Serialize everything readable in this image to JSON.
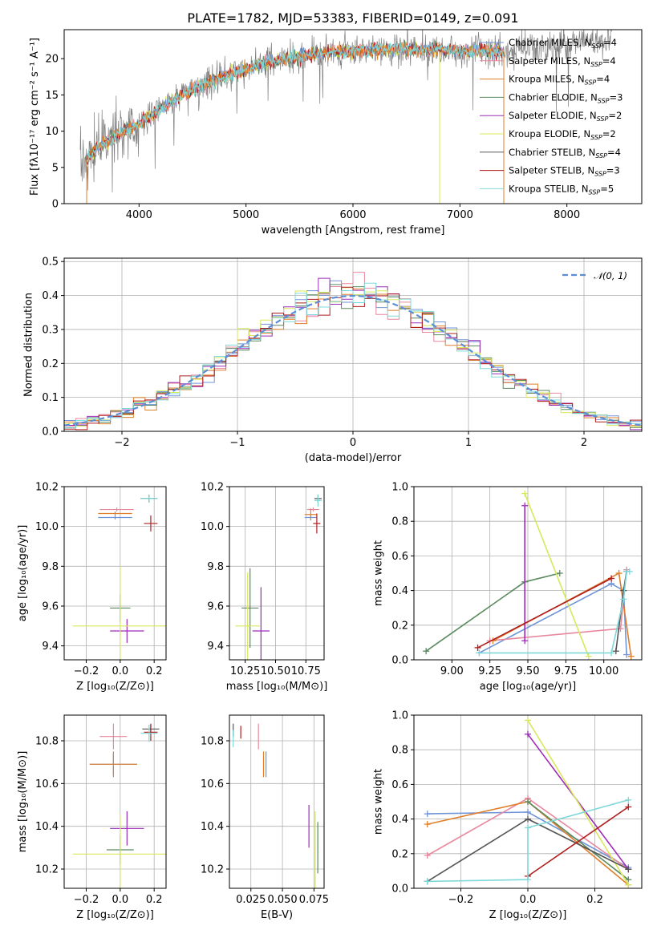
{
  "colors": {
    "chabrier_miles": "#6f94d8",
    "salpeter_miles": "#e8889e",
    "kroupa_miles": "#e07f2a",
    "chabrier_elodie": "#5a8a5e",
    "salpeter_elodie": "#9d2bb8",
    "kroupa_elodie": "#d8e85a",
    "chabrier_stelib": "#555555",
    "salpeter_stelib": "#b01e1e",
    "kroupa_stelib": "#7fd8d8",
    "grid": "#b0b0b0",
    "axes": "#000000",
    "normal": "#5b8ed6"
  },
  "chart_data": [
    {
      "id": "spectrum",
      "type": "line",
      "title": "PLATE=1782, MJD=53383, FIBERID=0149, z=0.091",
      "xlabel": "wavelength [Angstrom, rest frame]",
      "ylabel": "Flux [fλ10⁻¹⁷ erg cm⁻² s⁻¹ A⁻¹]",
      "xlim": [
        3300,
        8700
      ],
      "ylim": [
        0,
        24
      ],
      "xticks": [
        "4000",
        "5000",
        "6000",
        "7000",
        "8000"
      ],
      "xtick_values": [
        4000,
        5000,
        6000,
        7000,
        8000
      ],
      "yticks": [
        "0",
        "5",
        "10",
        "15",
        "20"
      ],
      "ytick_values": [
        0,
        5,
        10,
        15,
        20
      ],
      "grid": false,
      "legend_position": "top-right",
      "legend": [
        {
          "label": "Chabrier MILES, N",
          "sub": "SSP",
          "post": "=4",
          "color_key": "chabrier_miles"
        },
        {
          "label": "Salpeter MILES, N",
          "sub": "SSP",
          "post": "=4",
          "color_key": "salpeter_miles"
        },
        {
          "label": "Kroupa MILES, N",
          "sub": "SSP",
          "post": "=4",
          "color_key": "kroupa_miles"
        },
        {
          "label": "Chabrier ELODIE, N",
          "sub": "SSP",
          "post": "=3",
          "color_key": "chabrier_elodie"
        },
        {
          "label": "Salpeter ELODIE, N",
          "sub": "SSP",
          "post": "=2",
          "color_key": "salpeter_elodie"
        },
        {
          "label": "Kroupa ELODIE, N",
          "sub": "SSP",
          "post": "=2",
          "color_key": "kroupa_elodie"
        },
        {
          "label": "Chabrier STELIB, N",
          "sub": "SSP",
          "post": "=4",
          "color_key": "chabrier_stelib"
        },
        {
          "label": "Salpeter STELIB, N",
          "sub": "SSP",
          "post": "=3",
          "color_key": "salpeter_stelib"
        },
        {
          "label": "Kroupa STELIB, N",
          "sub": "SSP",
          "post": "=5",
          "color_key": "kroupa_stelib"
        }
      ],
      "continuum": {
        "x": [
          3450,
          3600,
          3800,
          4000,
          4200,
          4400,
          4600,
          4800,
          5000,
          5200,
          5400,
          5600,
          5800,
          6000,
          6200,
          6400,
          6600,
          6800,
          7000,
          7200,
          7400,
          7600,
          7800,
          8000,
          8200,
          8400
        ],
        "y": [
          5,
          7.5,
          9.5,
          11,
          13,
          15,
          16.5,
          17.5,
          18.5,
          19.5,
          20,
          20.5,
          21,
          21,
          21.2,
          21.3,
          21.2,
          21.3,
          21.1,
          21,
          21,
          21.5,
          21.5,
          22,
          22.5,
          22.8
        ]
      }
    },
    {
      "id": "residuals",
      "type": "histogram",
      "xlabel": "(data-model)/error",
      "ylabel": "Normed distribution",
      "xlim": [
        -2.5,
        2.5
      ],
      "ylim": [
        0,
        0.51
      ],
      "xticks": [
        "−2",
        "−1",
        "0",
        "1",
        "2"
      ],
      "xtick_values": [
        -2,
        -1,
        0,
        1,
        2
      ],
      "yticks": [
        "0.0",
        "0.1",
        "0.2",
        "0.3",
        "0.4",
        "0.5"
      ],
      "ytick_values": [
        0,
        0.1,
        0.2,
        0.3,
        0.4,
        0.5
      ],
      "grid": true,
      "legend_position": "top-right",
      "legend": [
        {
          "label": "𝒩(0, 1)",
          "color_key": "normal"
        }
      ],
      "bin_width": 0.1
    },
    {
      "id": "age_vs_z",
      "type": "errorbar",
      "xlabel": "Z [log₁₀(Z/Z⊙)]",
      "ylabel": "age  [log₁₀(age/yr)]",
      "xlim": [
        -0.33,
        0.27
      ],
      "ylim": [
        9.33,
        10.2
      ],
      "xticks": [
        "−0.2",
        "0.0",
        "0.2"
      ],
      "xtick_values": [
        -0.2,
        0.0,
        0.2
      ],
      "yticks": [
        "9.4",
        "9.6",
        "9.8",
        "10.0",
        "10.2"
      ],
      "ytick_values": [
        9.4,
        9.6,
        9.8,
        10.0,
        10.2
      ],
      "grid": true,
      "points": [
        {
          "c": "chabrier_miles",
          "x": -0.03,
          "xerr": 0.1,
          "y": 10.045,
          "yerr": 0.01
        },
        {
          "c": "salpeter_miles",
          "x": -0.02,
          "xerr": 0.1,
          "y": 10.085,
          "yerr": 0.01
        },
        {
          "c": "kroupa_miles",
          "x": -0.03,
          "xerr": 0.1,
          "y": 10.065,
          "yerr": 0.01
        },
        {
          "c": "chabrier_elodie",
          "x": 0.0,
          "xerr": 0.06,
          "y": 9.59,
          "yerr": 0.07
        },
        {
          "c": "salpeter_elodie",
          "x": 0.04,
          "xerr": 0.1,
          "y": 9.475,
          "yerr": 0.06
        },
        {
          "c": "kroupa_elodie",
          "x": 0.0,
          "xerr": 0.28,
          "y": 9.5,
          "yerr": 0.3
        },
        {
          "c": "chabrier_stelib",
          "x": 0.17,
          "xerr": 0.05,
          "y": 10.14,
          "yerr": 0.02
        },
        {
          "c": "salpeter_stelib",
          "x": 0.18,
          "xerr": 0.04,
          "y": 10.015,
          "yerr": 0.04
        },
        {
          "c": "kroupa_stelib",
          "x": 0.17,
          "xerr": 0.05,
          "y": 10.14,
          "yerr": 0.02
        }
      ]
    },
    {
      "id": "age_vs_mass",
      "type": "errorbar",
      "xlabel": "mass [log₁₀(M/M⊙)]",
      "ylabel": "",
      "xlim": [
        10.12,
        10.9
      ],
      "ylim": [
        9.33,
        10.2
      ],
      "xticks": [
        "10.25",
        "10.50",
        "10.75"
      ],
      "xtick_values": [
        10.25,
        10.5,
        10.75
      ],
      "yticks": [
        "9.4",
        "9.6",
        "9.8",
        "10.0",
        "10.2"
      ],
      "ytick_values": [
        9.4,
        9.6,
        9.8,
        10.0,
        10.2
      ],
      "grid": true,
      "points": [
        {
          "c": "chabrier_miles",
          "x": 10.79,
          "xerr": 0.05,
          "y": 10.045,
          "yerr": 0.01
        },
        {
          "c": "salpeter_miles",
          "x": 10.81,
          "xerr": 0.05,
          "y": 10.085,
          "yerr": 0.01
        },
        {
          "c": "kroupa_miles",
          "x": 10.79,
          "xerr": 0.05,
          "y": 10.06,
          "yerr": 0.03
        },
        {
          "c": "chabrier_elodie",
          "x": 10.29,
          "xerr": 0.07,
          "y": 9.59,
          "yerr": 0.2
        },
        {
          "c": "salpeter_elodie",
          "x": 10.38,
          "xerr": 0.07,
          "y": 9.475,
          "yerr": 0.22
        },
        {
          "c": "kroupa_elodie",
          "x": 10.27,
          "xerr": 0.1,
          "y": 9.5,
          "yerr": 0.27
        },
        {
          "c": "chabrier_stelib",
          "x": 10.85,
          "xerr": 0.03,
          "y": 10.14,
          "yerr": 0.02
        },
        {
          "c": "salpeter_stelib",
          "x": 10.84,
          "xerr": 0.03,
          "y": 10.015,
          "yerr": 0.05
        },
        {
          "c": "kroupa_stelib",
          "x": 10.85,
          "xerr": 0.03,
          "y": 10.13,
          "yerr": 0.03
        }
      ]
    },
    {
      "id": "weight_vs_age",
      "type": "line",
      "xlabel": "age  [log₁₀(age/yr)]",
      "ylabel": "mass weight",
      "xlim": [
        8.75,
        10.25
      ],
      "ylim": [
        0,
        1.0
      ],
      "xticks": [
        "9.00",
        "9.25",
        "9.50",
        "9.75",
        "10.00"
      ],
      "xtick_values": [
        9.0,
        9.25,
        9.5,
        9.75,
        10.0
      ],
      "yticks": [
        "0.0",
        "0.2",
        "0.4",
        "0.6",
        "0.8",
        "1.0"
      ],
      "ytick_values": [
        0,
        0.2,
        0.4,
        0.6,
        0.8,
        1.0
      ],
      "grid": true,
      "series": [
        {
          "c": "chabrier_miles",
          "x": [
            9.18,
            10.05,
            10.13,
            10.15
          ],
          "y": [
            0.04,
            0.44,
            0.4,
            0.03
          ]
        },
        {
          "c": "salpeter_miles",
          "x": [
            9.25,
            10.11,
            10.15
          ],
          "y": [
            0.11,
            0.18,
            0.52
          ]
        },
        {
          "c": "kroupa_miles",
          "x": [
            9.27,
            10.1,
            10.18
          ],
          "y": [
            0.11,
            0.5,
            0.02
          ]
        },
        {
          "c": "chabrier_elodie",
          "x": [
            8.83,
            9.48,
            9.71
          ],
          "y": [
            0.05,
            0.45,
            0.5
          ]
        },
        {
          "c": "salpeter_elodie",
          "x": [
            9.48,
            9.48
          ],
          "y": [
            0.11,
            0.89
          ]
        },
        {
          "c": "kroupa_elodie",
          "x": [
            9.48,
            9.9
          ],
          "y": [
            0.96,
            0.02
          ]
        },
        {
          "c": "chabrier_stelib",
          "x": [
            10.08,
            10.13,
            10.15
          ],
          "y": [
            0.05,
            0.4,
            0.51
          ]
        },
        {
          "c": "salpeter_stelib",
          "x": [
            9.17,
            10.05
          ],
          "y": [
            0.07,
            0.47
          ]
        },
        {
          "c": "kroupa_stelib",
          "x": [
            9.18,
            10.05,
            10.13,
            10.15,
            10.17
          ],
          "y": [
            0.04,
            0.04,
            0.35,
            0.51,
            0.51
          ]
        }
      ]
    },
    {
      "id": "mass_vs_z",
      "type": "errorbar",
      "xlabel": "Z [log₁₀(Z/Z⊙)]",
      "ylabel": "mass [log₁₀(M/M⊙)]",
      "xlim": [
        -0.33,
        0.27
      ],
      "ylim": [
        10.11,
        10.92
      ],
      "xticks": [
        "−0.2",
        "0.0",
        "0.2"
      ],
      "xtick_values": [
        -0.2,
        0.0,
        0.2
      ],
      "yticks": [
        "10.2",
        "10.4",
        "10.6",
        "10.8"
      ],
      "ytick_values": [
        10.2,
        10.4,
        10.6,
        10.8
      ],
      "grid": true,
      "points": [
        {
          "c": "chabrier_miles",
          "x": -0.04,
          "xerr": 0.14,
          "y": 10.69,
          "yerr": 0.05
        },
        {
          "c": "salpeter_miles",
          "x": -0.04,
          "xerr": 0.08,
          "y": 10.82,
          "yerr": 0.06
        },
        {
          "c": "kroupa_miles",
          "x": -0.04,
          "xerr": 0.14,
          "y": 10.69,
          "yerr": 0.06
        },
        {
          "c": "chabrier_elodie",
          "x": 0.0,
          "xerr": 0.08,
          "y": 10.29,
          "yerr": 0.07
        },
        {
          "c": "salpeter_elodie",
          "x": 0.04,
          "xerr": 0.1,
          "y": 10.39,
          "yerr": 0.08
        },
        {
          "c": "kroupa_elodie",
          "x": 0.0,
          "xerr": 0.28,
          "y": 10.27,
          "yerr": 0.18
        },
        {
          "c": "chabrier_stelib",
          "x": 0.18,
          "xerr": 0.05,
          "y": 10.855,
          "yerr": 0.02
        },
        {
          "c": "salpeter_stelib",
          "x": 0.18,
          "xerr": 0.04,
          "y": 10.84,
          "yerr": 0.04
        },
        {
          "c": "kroupa_stelib",
          "x": 0.17,
          "xerr": 0.05,
          "y": 10.835,
          "yerr": 0.04
        }
      ]
    },
    {
      "id": "mass_vs_ebv",
      "type": "errorbar",
      "xlabel": "E(B-V)",
      "ylabel": "",
      "xlim": [
        0.008,
        0.083
      ],
      "ylim": [
        10.11,
        10.92
      ],
      "xticks": [
        "0.025",
        "0.050",
        "0.075"
      ],
      "xtick_values": [
        0.025,
        0.05,
        0.075
      ],
      "yticks": [
        "10.2",
        "10.4",
        "10.6",
        "10.8"
      ],
      "ytick_values": [
        10.2,
        10.4,
        10.6,
        10.8
      ],
      "grid": true,
      "points": [
        {
          "c": "chabrier_miles",
          "x": 0.037,
          "yerr": 0.06,
          "y": 10.69
        },
        {
          "c": "salpeter_miles",
          "x": 0.031,
          "yerr": 0.06,
          "y": 10.82
        },
        {
          "c": "kroupa_miles",
          "x": 0.035,
          "yerr": 0.06,
          "y": 10.69
        },
        {
          "c": "chabrier_elodie",
          "x": 0.078,
          "yerr": 0.12,
          "y": 10.3
        },
        {
          "c": "salpeter_elodie",
          "x": 0.071,
          "yerr": 0.1,
          "y": 10.4
        },
        {
          "c": "kroupa_elodie",
          "x": 0.076,
          "yerr": 0.2,
          "y": 10.27
        },
        {
          "c": "chabrier_stelib",
          "x": 0.011,
          "yerr": 0.03,
          "y": 10.85
        },
        {
          "c": "salpeter_stelib",
          "x": 0.017,
          "yerr": 0.03,
          "y": 10.84
        },
        {
          "c": "kroupa_stelib",
          "x": 0.011,
          "yerr": 0.04,
          "y": 10.81
        }
      ]
    },
    {
      "id": "weight_vs_z",
      "type": "line",
      "xlabel": "Z [log₁₀(Z/Z⊙)]",
      "ylabel": "mass weight",
      "xlim": [
        -0.34,
        0.34
      ],
      "ylim": [
        0,
        1.0
      ],
      "xticks": [
        "−0.2",
        "0.0",
        "0.2"
      ],
      "xtick_values": [
        -0.2,
        0.0,
        0.2
      ],
      "yticks": [
        "0.0",
        "0.2",
        "0.4",
        "0.6",
        "0.8",
        "1.0"
      ],
      "ytick_values": [
        0,
        0.2,
        0.4,
        0.6,
        0.8,
        1.0
      ],
      "grid": true,
      "series": [
        {
          "c": "chabrier_miles",
          "x": [
            -0.3,
            0.0,
            0.3
          ],
          "y": [
            0.43,
            0.44,
            0.12
          ]
        },
        {
          "c": "salpeter_miles",
          "x": [
            -0.3,
            0.0,
            0.3
          ],
          "y": [
            0.19,
            0.52,
            0.11
          ]
        },
        {
          "c": "kroupa_miles",
          "x": [
            -0.3,
            0.0,
            0.3
          ],
          "y": [
            0.37,
            0.5,
            0.02
          ]
        },
        {
          "c": "chabrier_elodie",
          "x": [
            0.0,
            0.3
          ],
          "y": [
            0.5,
            0.05
          ]
        },
        {
          "c": "salpeter_elodie",
          "x": [
            0.0,
            0.3
          ],
          "y": [
            0.89,
            0.11
          ]
        },
        {
          "c": "kroupa_elodie",
          "x": [
            0.0,
            0.3
          ],
          "y": [
            0.97,
            0.02
          ]
        },
        {
          "c": "chabrier_stelib",
          "x": [
            -0.3,
            0.0,
            0.3
          ],
          "y": [
            0.04,
            0.4,
            0.11
          ]
        },
        {
          "c": "salpeter_stelib",
          "x": [
            0.0,
            0.3
          ],
          "y": [
            0.07,
            0.47
          ]
        },
        {
          "c": "kroupa_stelib",
          "x": [
            -0.3,
            0.0,
            0.0,
            0.3
          ],
          "y": [
            0.04,
            0.05,
            0.35,
            0.51
          ]
        }
      ]
    }
  ]
}
